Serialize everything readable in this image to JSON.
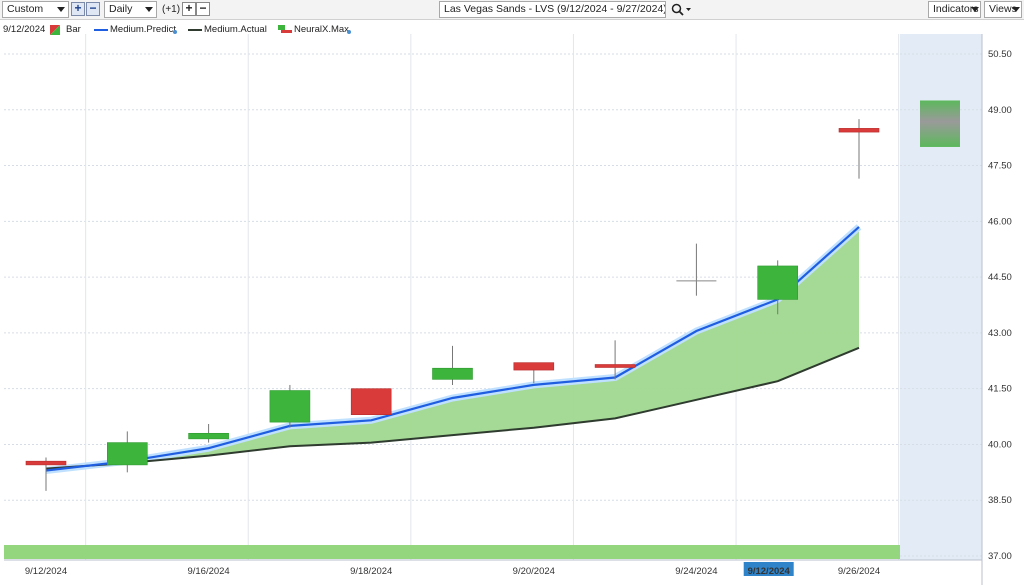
{
  "toolbar": {
    "range_select": "Custom",
    "interval_select": "Daily",
    "offset_label": "(+1)",
    "title": "Las Vegas Sands - LVS (9/12/2024 - 9/27/2024)",
    "indicators_label": "Indicators",
    "views_label": "Views"
  },
  "legend": {
    "date": "9/12/2024",
    "bar_label": "Bar",
    "predict_label": "Medium.Predict",
    "actual_label": "Medium.Actual",
    "neural_label": "NeuralX.Max"
  },
  "colors": {
    "up": "#3db53d",
    "down": "#d93a3a",
    "predict": "#1f5ee0",
    "actual": "#2e3b2e",
    "fill": "#9fd88f",
    "forecast_bg": "#e3ecf6",
    "badge": "#2f84c9"
  },
  "chart_data": {
    "type": "candlestick",
    "ylim": [
      37.0,
      50.5
    ],
    "y_ticks": [
      "37.00",
      "38.50",
      "40.00",
      "41.50",
      "43.00",
      "44.50",
      "46.00",
      "47.50",
      "49.00",
      "50.50"
    ],
    "x_ticks": [
      "9/12/2024",
      "9/16/2024",
      "9/18/2024",
      "9/20/2024",
      "9/24/2024",
      "9/12/2024",
      "9/26/2024"
    ],
    "highlighted_x_tick": "9/12/2024",
    "candles": [
      {
        "o": 39.55,
        "h": 39.65,
        "l": 38.75,
        "c": 39.45
      },
      {
        "o": 39.45,
        "h": 40.35,
        "l": 39.25,
        "c": 40.05
      },
      {
        "o": 40.15,
        "h": 40.55,
        "l": 40.05,
        "c": 40.3
      },
      {
        "o": 40.6,
        "h": 41.6,
        "l": 40.45,
        "c": 41.45
      },
      {
        "o": 41.5,
        "h": 41.5,
        "l": 40.8,
        "c": 40.8
      },
      {
        "o": 41.75,
        "h": 42.65,
        "l": 41.6,
        "c": 42.05
      },
      {
        "o": 42.2,
        "h": 42.2,
        "l": 41.65,
        "c": 42.0
      },
      {
        "o": 42.15,
        "h": 42.8,
        "l": 41.75,
        "c": 42.1
      },
      {
        "o": 44.4,
        "h": 45.4,
        "l": 44.0,
        "c": 44.4
      },
      {
        "o": 43.9,
        "h": 44.95,
        "l": 43.5,
        "c": 44.8
      },
      {
        "o": 48.5,
        "h": 48.75,
        "l": 47.15,
        "c": 48.4
      }
    ],
    "candle_styles": [
      "red",
      "green",
      "green",
      "green",
      "red",
      "green",
      "red",
      "red",
      "gray",
      "green",
      "red"
    ],
    "series": [
      {
        "name": "Medium.Predict",
        "values": [
          39.3,
          39.55,
          39.9,
          40.5,
          40.65,
          41.25,
          41.6,
          41.8,
          43.05,
          43.9,
          45.85
        ]
      },
      {
        "name": "Medium.Actual",
        "values": [
          39.35,
          39.5,
          39.7,
          39.95,
          40.05,
          40.25,
          40.45,
          40.7,
          41.2,
          41.7,
          42.6
        ]
      }
    ],
    "forecast": {
      "top": 49.25,
      "bottom": 48.0
    }
  }
}
